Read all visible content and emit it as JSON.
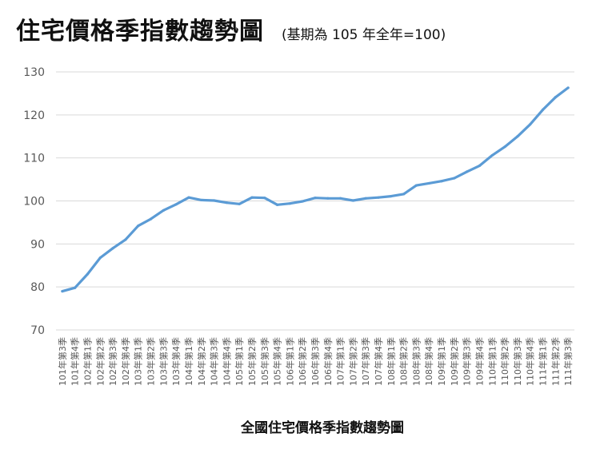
{
  "header": {
    "title": "住宅價格季指數趨勢圖",
    "subtitle": "(基期為 105 年全年=100)"
  },
  "chart_data": {
    "type": "line",
    "title": "全國住宅價格季指數趨勢圖",
    "xlabel": "",
    "ylabel": "",
    "ylim": [
      70,
      130
    ],
    "yticks": [
      70,
      80,
      90,
      100,
      110,
      120,
      130
    ],
    "grid": true,
    "line_color": "#5b9bd5",
    "categories": [
      "101年第3季",
      "101年第4季",
      "102年第1季",
      "102年第2季",
      "102年第3季",
      "102年第4季",
      "103年第1季",
      "103年第2季",
      "103年第3季",
      "103年第4季",
      "104年第1季",
      "104年第2季",
      "104年第3季",
      "104年第4季",
      "105年第1季",
      "105年第2季",
      "105年第3季",
      "105年第4季",
      "106年第1季",
      "106年第2季",
      "106年第3季",
      "106年第4季",
      "107年第1季",
      "107年第2季",
      "107年第3季",
      "107年第4季",
      "108年第1季",
      "108年第2季",
      "108年第3季",
      "108年第4季",
      "109年第1季",
      "109年第2季",
      "109年第3季",
      "109年第4季",
      "110年第1季",
      "110年第2季",
      "110年第3季",
      "110年第4季",
      "111年第1季",
      "111年第2季",
      "111年第3季"
    ],
    "series": [
      {
        "name": "全國住宅價格季指數",
        "values": [
          79.0,
          79.8,
          83.0,
          86.8,
          89.0,
          91.0,
          94.2,
          95.8,
          97.8,
          99.2,
          100.8,
          100.2,
          100.1,
          99.6,
          99.3,
          100.8,
          100.7,
          99.1,
          99.4,
          99.9,
          100.7,
          100.6,
          100.6,
          100.1,
          100.6,
          100.8,
          101.1,
          101.6,
          103.6,
          104.1,
          104.6,
          105.3,
          106.8,
          108.2,
          110.6,
          112.6,
          115.0,
          117.8,
          121.2,
          124.1,
          126.3
        ]
      }
    ]
  }
}
